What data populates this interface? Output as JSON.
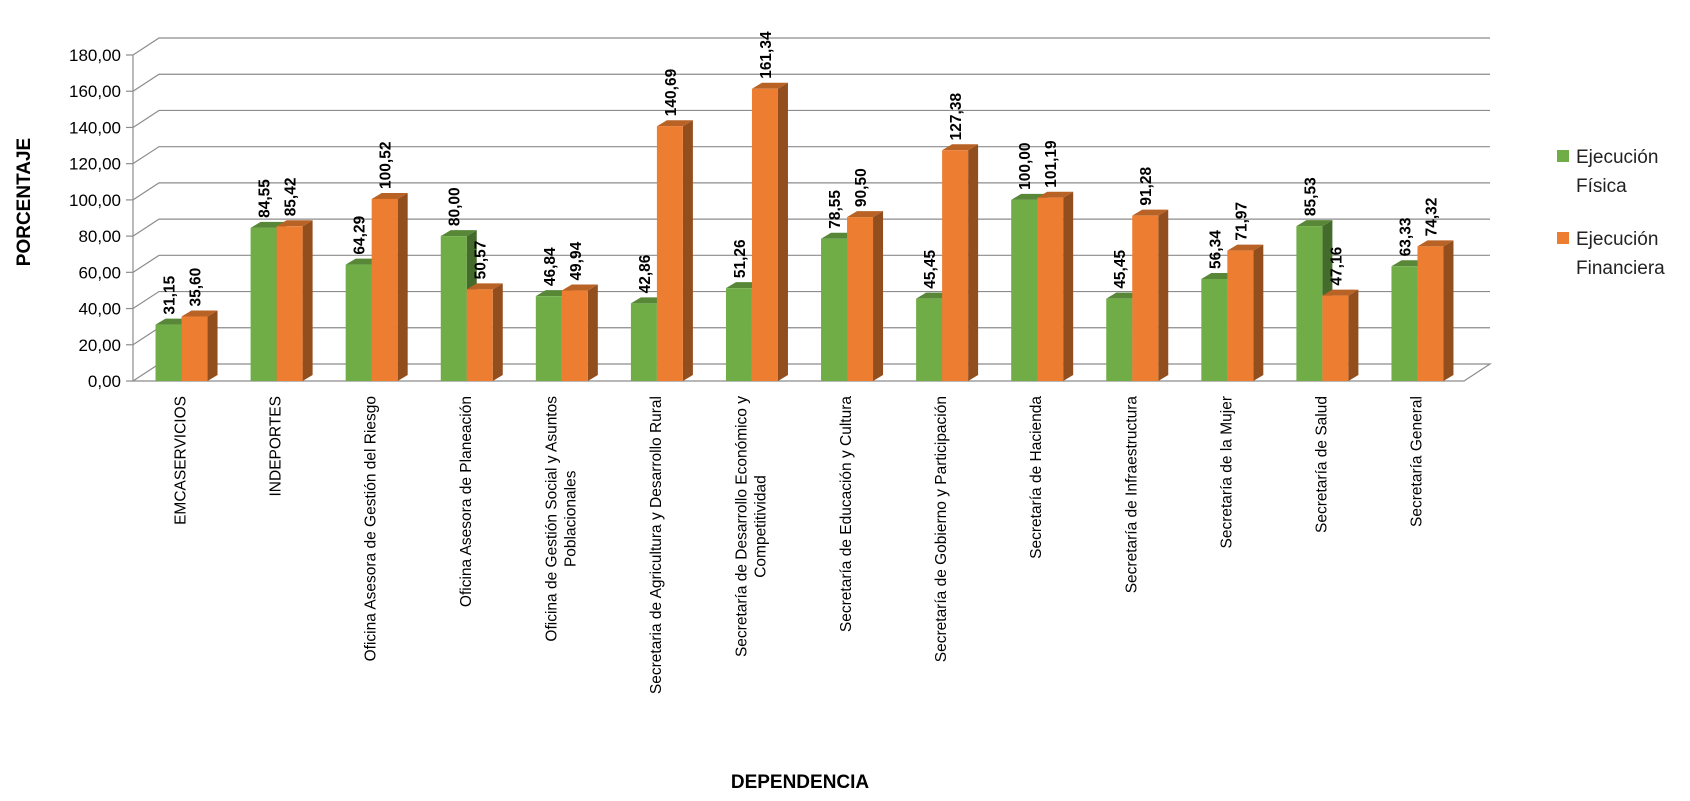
{
  "chart_data": {
    "type": "bar",
    "title": "",
    "xlabel": "DEPENDENCIA",
    "ylabel": "PORCENTAJE",
    "ylim": [
      0,
      180
    ],
    "yticks": [
      "0,00",
      "20,00",
      "40,00",
      "60,00",
      "80,00",
      "100,00",
      "120,00",
      "140,00",
      "160,00",
      "180,00"
    ],
    "grid": true,
    "legend_position": "right",
    "categories": [
      [
        "EMCASERVICIOS"
      ],
      [
        "INDEPORTES"
      ],
      [
        "Oficina Asesora de Gestión del Riesgo"
      ],
      [
        "Oficina Asesora de Planeación"
      ],
      [
        "Oficina de Gestión Social y Asuntos",
        "Poblacionales"
      ],
      [
        "Secretaria de Agricultura y Desarrollo Rural"
      ],
      [
        "Secretaría de Desarrollo Económico y",
        "Competitividad"
      ],
      [
        "Secretaría de Educación y Cultura"
      ],
      [
        "Secretaría de Gobierno y Participación"
      ],
      [
        "Secretaría de Hacienda"
      ],
      [
        "Secretaría de Infraestructura"
      ],
      [
        "Secretaría de la Mujer"
      ],
      [
        "Secretaría de Salud"
      ],
      [
        "Secretaría General"
      ]
    ],
    "series": [
      {
        "name_lines": [
          "Ejecución",
          "Física"
        ],
        "color": "#70AD47",
        "values": [
          31.15,
          84.55,
          64.29,
          80.0,
          46.84,
          42.86,
          51.26,
          78.55,
          45.45,
          100.0,
          45.45,
          56.34,
          85.53,
          63.33
        ],
        "labels": [
          "31,15",
          "84,55",
          "64,29",
          "80,00",
          "46,84",
          "42,86",
          "51,26",
          "78,55",
          "45,45",
          "100,00",
          "45,45",
          "56,34",
          "85,53",
          "63,33"
        ]
      },
      {
        "name_lines": [
          "Ejecución",
          "Financiera"
        ],
        "color": "#ED7D31",
        "values": [
          35.6,
          85.42,
          100.52,
          50.57,
          49.94,
          140.69,
          161.34,
          90.5,
          127.38,
          101.19,
          91.28,
          71.97,
          47.16,
          74.32
        ],
        "labels": [
          "35,60",
          "85,42",
          "100,52",
          "50,57",
          "49,94",
          "140,69",
          "161,34",
          "90,50",
          "127,38",
          "101,19",
          "91,28",
          "71,97",
          "47,16",
          "74,32"
        ]
      }
    ]
  }
}
